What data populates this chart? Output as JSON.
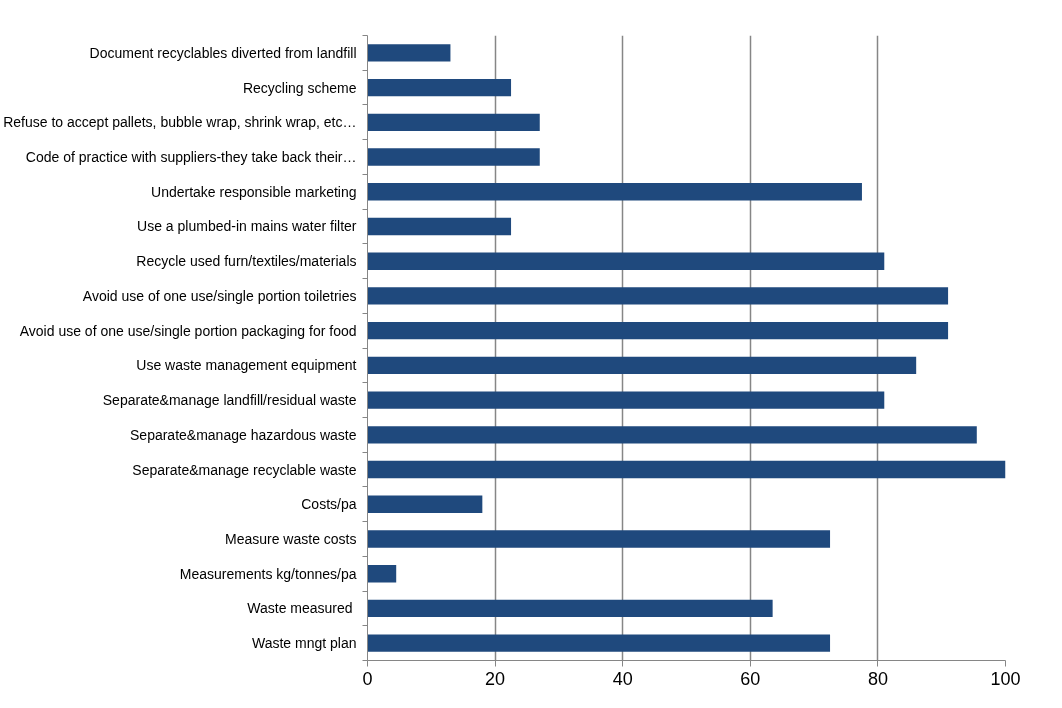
{
  "chart_data": {
    "type": "bar",
    "orientation": "horizontal",
    "categories": [
      "Document recyclables diverted from landfill",
      "Recycling scheme",
      "Refuse to accept pallets, bubble wrap, shrink wrap, etc…",
      "Code of practice with suppliers-they take back their…",
      "Undertake responsible marketing",
      "Use a plumbed-in mains water filter",
      "Recycle used furn/textiles/materials",
      "Avoid use of one use/single portion toiletries",
      "Avoid use of one use/single portion packaging for food",
      "Use waste management equipment",
      "Separate&manage landfill/residual waste",
      "Separate&manage hazardous waste",
      "Separate&manage recyclable waste",
      "Costs/pa",
      "Measure waste costs",
      "Measurements kg/tonnes/pa",
      "Waste  measured",
      "Waste mngt plan"
    ],
    "values": [
      13,
      22.5,
      27,
      27,
      77.5,
      22.5,
      81,
      91,
      91,
      86,
      81,
      95.5,
      100,
      18,
      72.5,
      4.5,
      63.5,
      72.5
    ],
    "color": "#1f497d",
    "xlim": [
      0,
      100
    ],
    "xticks": [
      0,
      20,
      40,
      60,
      80,
      100
    ],
    "grid": "x"
  }
}
